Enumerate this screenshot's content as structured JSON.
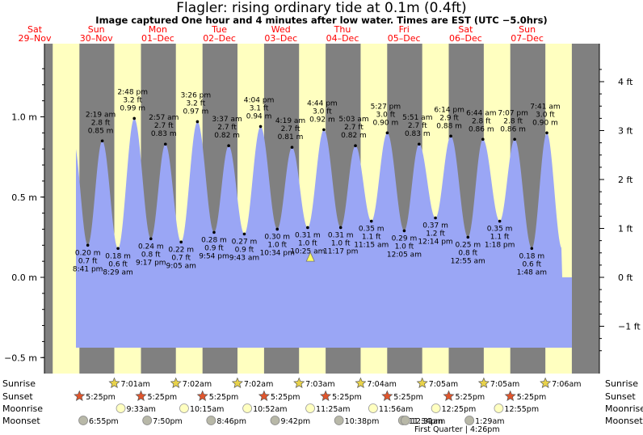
{
  "title": "Flagler: rising  ordinary tide at 0.1m (0.4ft)",
  "subtitle": "Image captured One hour and 4 minutes after low water. Times are EST (UTC −5.0hrs)",
  "colors": {
    "day": "#ffffc0",
    "night": "#808080",
    "water": "#9aa6f5",
    "day_label": "#ff0000"
  },
  "chart_data": {
    "type": "area",
    "xlabel": "",
    "ylabel": "",
    "x_unit": "days from 29-Nov 00:00 EST",
    "ylim_m": [
      -0.55,
      1.38
    ],
    "left_axis_ticks": [
      {
        "value": 1.0,
        "label": "1.0 m"
      },
      {
        "value": 0.5,
        "label": "0.5 m"
      },
      {
        "value": 0.0,
        "label": "0.0 m"
      },
      {
        "value": -0.5,
        "label": "−0.5 m"
      }
    ],
    "right_axis_ticks": [
      {
        "value": 4,
        "label": "4 ft"
      },
      {
        "value": 3,
        "label": "3 ft"
      },
      {
        "value": 2,
        "label": "2 ft"
      },
      {
        "value": 1,
        "label": "1 ft"
      },
      {
        "value": 0,
        "label": "0 ft"
      },
      {
        "value": -1,
        "label": "−1 ft"
      }
    ],
    "days": [
      {
        "dow": "Sat",
        "date": "29–Nov"
      },
      {
        "dow": "Sun",
        "date": "30–Nov"
      },
      {
        "dow": "Mon",
        "date": "01–Dec"
      },
      {
        "dow": "Tue",
        "date": "02–Dec"
      },
      {
        "dow": "Wed",
        "date": "03–Dec"
      },
      {
        "dow": "Thu",
        "date": "04–Dec"
      },
      {
        "dow": "Fri",
        "date": "05–Dec"
      },
      {
        "dow": "Sat",
        "date": "06–Dec"
      },
      {
        "dow": "Sun",
        "date": "07–Dec"
      }
    ],
    "high_tides": [
      {
        "time": "2:19 am",
        "ft": "2.8 ft",
        "m": 0.85,
        "t": 1.097
      },
      {
        "time": "2:48 pm",
        "ft": "3.2 ft",
        "m": 0.99,
        "t": 1.617
      },
      {
        "time": "2:57 am",
        "ft": "2.7 ft",
        "m": 0.83,
        "t": 2.123
      },
      {
        "time": "3:26 pm",
        "ft": "3.2 ft",
        "m": 0.97,
        "t": 2.643
      },
      {
        "time": "3:37 am",
        "ft": "2.7 ft",
        "m": 0.82,
        "t": 3.151
      },
      {
        "time": "4:04 pm",
        "ft": "3.1 ft",
        "m": 0.94,
        "t": 3.669
      },
      {
        "time": "4:19 am",
        "ft": "2.7 ft",
        "m": 0.81,
        "t": 4.18
      },
      {
        "time": "4:44 pm",
        "ft": "3.0 ft",
        "m": 0.92,
        "t": 4.697
      },
      {
        "time": "5:03 am",
        "ft": "2.7 ft",
        "m": 0.82,
        "t": 5.21
      },
      {
        "time": "5:27 pm",
        "ft": "3.0 ft",
        "m": 0.9,
        "t": 5.727
      },
      {
        "time": "5:51 am",
        "ft": "2.7 ft",
        "m": 0.83,
        "t": 6.244
      },
      {
        "time": "6:14 pm",
        "ft": "2.9 ft",
        "m": 0.88,
        "t": 6.76
      },
      {
        "time": "6:44 am",
        "ft": "2.8 ft",
        "m": 0.86,
        "t": 7.281
      },
      {
        "time": "7:07 pm",
        "ft": "2.8 ft",
        "m": 0.86,
        "t": 7.797
      },
      {
        "time": "7:41 am",
        "ft": "3.0 ft",
        "m": 0.9,
        "t": 8.32
      }
    ],
    "low_tides": [
      {
        "time": "8:41 pm",
        "ft": "0.7 ft",
        "m": 0.2,
        "t": 0.862
      },
      {
        "time": "8:29 am",
        "ft": "0.6 ft",
        "m": 0.18,
        "t": 1.353
      },
      {
        "time": "9:17 pm",
        "ft": "0.8 ft",
        "m": 0.24,
        "t": 1.887
      },
      {
        "time": "9:05 am",
        "ft": "0.7 ft",
        "m": 0.22,
        "t": 2.378
      },
      {
        "time": "9:54 pm",
        "ft": "0.9 ft",
        "m": 0.28,
        "t": 2.913
      },
      {
        "time": "9:43 am",
        "ft": "0.9 ft",
        "m": 0.27,
        "t": 3.405
      },
      {
        "time": "10:34 pm",
        "ft": "1.0 ft",
        "m": 0.3,
        "t": 3.94
      },
      {
        "time": "10:25 am",
        "ft": "1.0 ft",
        "m": 0.31,
        "t": 4.434
      },
      {
        "time": "11:17 pm",
        "ft": "1.0 ft",
        "m": 0.31,
        "t": 4.97
      },
      {
        "time": "11:15 am",
        "ft": "1.1 ft",
        "m": 0.35,
        "t": 5.469
      },
      {
        "time": "12:05 am",
        "ft": "1.0 ft",
        "m": 0.29,
        "t": 6.003
      },
      {
        "time": "12:14 pm",
        "ft": "1.2 ft",
        "m": 0.37,
        "t": 6.51
      },
      {
        "time": "12:55 am",
        "ft": "0.8 ft",
        "m": 0.25,
        "t": 7.038
      },
      {
        "time": "1:18 pm",
        "ft": "1.1 ft",
        "m": 0.35,
        "t": 7.554
      },
      {
        "time": "1:48 am",
        "ft": "0.6 ft",
        "m": 0.18,
        "t": 8.075
      }
    ],
    "current": {
      "t": 4.478,
      "m": 0.1
    },
    "sunrise": [
      "7:01am",
      "7:02am",
      "7:02am",
      "7:03am",
      "7:04am",
      "7:05am",
      "7:05am",
      "7:06am"
    ],
    "sunset": [
      "5:25pm",
      "5:25pm",
      "5:25pm",
      "5:25pm",
      "5:25pm",
      "5:25pm",
      "5:25pm",
      "5:25pm"
    ],
    "moonrise": [
      "9:33am",
      "10:15am",
      "10:52am",
      "11:25am",
      "11:56am",
      "12:25pm",
      "12:55pm"
    ],
    "moonset": [
      "6:55pm",
      "7:50pm",
      "8:46pm",
      "9:42pm",
      "10:38pm",
      "11:34pm",
      "12:31am",
      "1:29am"
    ],
    "moon_phase_note": "First Quarter | 4:26pm",
    "row_labels": {
      "sunrise": "Sunrise",
      "sunset": "Sunset",
      "moonrise": "Moonrise",
      "moonset": "Moonset"
    }
  }
}
